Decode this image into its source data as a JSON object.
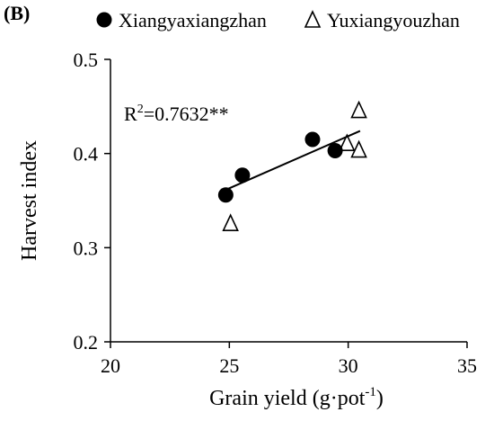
{
  "panel_label": "(B)",
  "chart_data": {
    "type": "scatter",
    "xlabel_main": "Grain yield (g·pot",
    "xlabel_sup": "-1",
    "xlabel_end": ")",
    "ylabel": "Harvest index",
    "xlim": [
      20,
      35
    ],
    "ylim": [
      0.2,
      0.5
    ],
    "x_ticks": [
      20,
      25,
      30,
      35
    ],
    "y_ticks": [
      0.2,
      0.3,
      0.4,
      0.5
    ],
    "x_tick_labels": [
      "20",
      "25",
      "30",
      "35"
    ],
    "y_tick_labels": [
      "0.2",
      "0.3",
      "0.4",
      "0.5"
    ],
    "grid": false,
    "legend_position": "top",
    "series": [
      {
        "name": "Xiangyaxiangzhan",
        "marker": "filled-circle",
        "color": "#000000",
        "points": [
          {
            "x": 24.85,
            "y": 0.356
          },
          {
            "x": 25.55,
            "y": 0.377
          },
          {
            "x": 28.5,
            "y": 0.415
          },
          {
            "x": 29.45,
            "y": 0.403
          }
        ]
      },
      {
        "name": "Yuxiangyouzhan",
        "marker": "open-triangle",
        "color": "#000000",
        "points": [
          {
            "x": 25.05,
            "y": 0.325
          },
          {
            "x": 29.95,
            "y": 0.41
          },
          {
            "x": 30.45,
            "y": 0.445
          },
          {
            "x": 30.45,
            "y": 0.403
          }
        ]
      }
    ],
    "regression": {
      "x_start": 24.9,
      "x_end": 30.5,
      "y_start": 0.362,
      "y_end": 0.424
    },
    "annotation": {
      "prefix": "R",
      "sup": "2",
      "value": "=0.7632**"
    }
  }
}
